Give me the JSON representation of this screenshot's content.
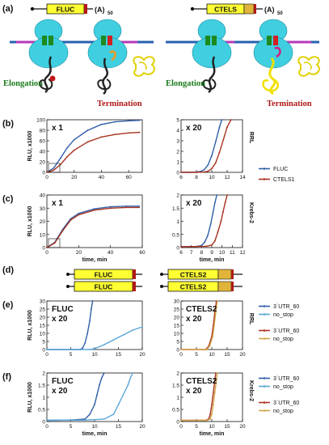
{
  "colors": {
    "blue": "#2f5fa8",
    "red": "#a8321e",
    "lightblue": "#5aa6d6",
    "gold": "#d2a64a",
    "black": "#111111",
    "ribosome": "#40cfe0",
    "green": "#1e8a1e",
    "termination": "#b01818",
    "elongation": "#1a7a1a",
    "yellow": "#ffff33"
  },
  "panel_a": {
    "label": "(a)",
    "construct_left": {
      "name": "FLUC",
      "polyA": "(A)",
      "polyA_sub": "50"
    },
    "construct_right": {
      "name": "CTELS",
      "polyA": "(A)",
      "polyA_sub": "50"
    },
    "elongation_left": "Elongation",
    "termination_left": "Termination",
    "elongation_right": "Elongation",
    "termination_right": "Termination"
  },
  "panel_d": {
    "label": "(d)",
    "constructs_left": [
      "FLUC",
      "FLUC"
    ],
    "constructs_right": [
      "CTELS2",
      "CTELS2"
    ]
  },
  "chart_data": [
    {
      "id": "b-left",
      "panel": "(b)",
      "type": "line",
      "annotation": "x 1",
      "ylabel": "RLU, x1000",
      "xlabel": "",
      "xlim": [
        0,
        70
      ],
      "ylim": [
        0,
        100
      ],
      "xticks": [
        0,
        20,
        40,
        60
      ],
      "yticks": [
        0,
        20,
        40,
        60,
        80,
        100
      ],
      "series": [
        {
          "color": "blue",
          "x": [
            0,
            5,
            10,
            15,
            20,
            30,
            40,
            50,
            60,
            68
          ],
          "y": [
            0,
            8,
            27,
            47,
            62,
            80,
            91,
            96,
            98,
            99
          ]
        },
        {
          "color": "red",
          "x": [
            0,
            5,
            10,
            15,
            20,
            30,
            40,
            50,
            60,
            68
          ],
          "y": [
            0,
            4,
            15,
            30,
            42,
            58,
            67,
            72,
            75,
            76
          ]
        }
      ]
    },
    {
      "id": "b-right",
      "panel": "",
      "type": "line",
      "annotation": "x 20",
      "side_label": "RRL",
      "xlabel": "",
      "xlim": [
        6,
        14
      ],
      "ylim": [
        0,
        5
      ],
      "xticks": [
        6,
        8,
        10,
        12,
        14
      ],
      "yticks": [
        0,
        1,
        2,
        3,
        4,
        5
      ],
      "series": [
        {
          "color": "blue",
          "x": [
            6,
            7,
            8,
            8.5,
            9,
            9.5,
            10,
            10.5,
            11,
            11.3
          ],
          "y": [
            0,
            0,
            0.03,
            0.08,
            0.25,
            0.7,
            1.6,
            2.9,
            4.3,
            5
          ]
        },
        {
          "color": "red",
          "x": [
            6,
            8,
            9,
            9.5,
            10,
            10.5,
            11,
            11.5,
            12,
            12.5
          ],
          "y": [
            0,
            0,
            0.03,
            0.1,
            0.35,
            0.9,
            1.9,
            3.1,
            4.3,
            5
          ]
        }
      ]
    },
    {
      "id": "c-left",
      "panel": "(c)",
      "type": "line",
      "annotation": "x 1",
      "ylabel": "RLU, x1000",
      "xlabel": "time, min",
      "xlim": [
        0,
        60
      ],
      "ylim": [
        0,
        40
      ],
      "xticks": [
        0,
        20,
        40,
        60
      ],
      "yticks": [
        0,
        10,
        20,
        30,
        40
      ],
      "series": [
        {
          "color": "blue",
          "x": [
            0,
            5,
            10,
            15,
            20,
            30,
            40,
            50,
            58
          ],
          "y": [
            0,
            4,
            14,
            22,
            26,
            29.5,
            31,
            31.5,
            31.5
          ]
        },
        {
          "color": "red",
          "x": [
            0,
            5,
            10,
            15,
            20,
            30,
            40,
            50,
            58
          ],
          "y": [
            0,
            3.5,
            13,
            21,
            25,
            28.5,
            30,
            30.5,
            30.5
          ]
        }
      ]
    },
    {
      "id": "c-right",
      "panel": "",
      "type": "line",
      "annotation": "x 20",
      "side_label": "Krebs-2",
      "xlabel": "time, min",
      "xlim": [
        6,
        12
      ],
      "ylim": [
        0,
        2
      ],
      "xticks": [
        6,
        7,
        8,
        9,
        10,
        11,
        12
      ],
      "yticks": [
        0,
        0.5,
        1,
        1.5,
        2
      ],
      "series": [
        {
          "color": "blue",
          "x": [
            6,
            7.5,
            8,
            8.3,
            8.6,
            8.9,
            9.1,
            9.3,
            9.5
          ],
          "y": [
            0.03,
            0.04,
            0.08,
            0.2,
            0.45,
            0.9,
            1.3,
            1.7,
            2
          ]
        },
        {
          "color": "red",
          "x": [
            6,
            8.5,
            9,
            9.3,
            9.6,
            9.9,
            10.1,
            10.3,
            10.5
          ],
          "y": [
            0.03,
            0.05,
            0.1,
            0.25,
            0.6,
            1.0,
            1.35,
            1.7,
            2
          ]
        }
      ]
    },
    {
      "id": "e-left",
      "panel": "(e)",
      "type": "line",
      "annotation": "FLUC",
      "annotation2": "x 20",
      "ylabel": "RLU, x1000",
      "xlabel": "",
      "xlim": [
        0,
        20
      ],
      "ylim": [
        0,
        30
      ],
      "xticks": [
        0,
        5,
        10,
        15,
        20
      ],
      "yticks": [
        0,
        5,
        10,
        15,
        20,
        25,
        30
      ],
      "series": [
        {
          "color": "blue",
          "x": [
            0,
            7,
            7.5,
            8,
            8.5,
            9,
            9.3,
            9.6
          ],
          "y": [
            0,
            0,
            1,
            4,
            10,
            18,
            25,
            30
          ]
        },
        {
          "color": "lightblue",
          "x": [
            0,
            9,
            10,
            12,
            14,
            16,
            18,
            20
          ],
          "y": [
            0,
            0,
            0.5,
            3,
            6,
            9,
            12,
            14
          ]
        }
      ]
    },
    {
      "id": "e-right",
      "panel": "",
      "type": "line",
      "annotation": "CTELS2",
      "annotation2": "x 20",
      "side_label": "RRL",
      "xlabel": "",
      "xlim": [
        0,
        20
      ],
      "ylim": [
        0,
        30
      ],
      "xticks": [
        0,
        5,
        10,
        15,
        20
      ],
      "yticks": [
        0,
        5,
        10,
        15,
        20,
        25,
        30
      ],
      "series": [
        {
          "color": "red",
          "x": [
            0,
            8,
            9,
            10,
            10.5,
            11,
            11.5
          ],
          "y": [
            0,
            0,
            2,
            8,
            15,
            23,
            30
          ]
        },
        {
          "color": "gold",
          "x": [
            0,
            8.3,
            9.3,
            10.3,
            10.8,
            11.3,
            11.8
          ],
          "y": [
            0,
            0,
            2,
            8,
            15,
            23,
            30
          ]
        }
      ]
    },
    {
      "id": "f-left",
      "panel": "(f)",
      "type": "line",
      "annotation": "FLUC",
      "annotation2": "x 20",
      "ylabel": "RLU, x1000",
      "xlabel": "time, min",
      "xlim": [
        0,
        20
      ],
      "ylim": [
        0,
        2
      ],
      "xticks": [
        0,
        5,
        10,
        15,
        20
      ],
      "yticks": [
        0,
        0.5,
        1,
        1.5,
        2
      ],
      "series": [
        {
          "color": "blue",
          "x": [
            0,
            5,
            8,
            9,
            10,
            10.5,
            11,
            11.5,
            12
          ],
          "y": [
            0.05,
            0.06,
            0.1,
            0.3,
            0.7,
            1.1,
            1.5,
            1.8,
            2
          ]
        },
        {
          "color": "lightblue",
          "x": [
            0,
            8,
            12,
            14,
            15,
            16,
            17,
            17.5,
            18
          ],
          "y": [
            0.05,
            0.06,
            0.1,
            0.3,
            0.7,
            1.1,
            1.5,
            1.8,
            2
          ]
        }
      ]
    },
    {
      "id": "f-right",
      "panel": "",
      "type": "line",
      "annotation": "CTELS2",
      "annotation2": "x 20",
      "side_label": "Krebs-2",
      "xlabel": "time, min",
      "xlim": [
        0,
        20
      ],
      "ylim": [
        0,
        2
      ],
      "xticks": [
        0,
        5,
        10,
        15,
        20
      ],
      "yticks": [
        0,
        0.5,
        1,
        1.5,
        2
      ],
      "series": [
        {
          "color": "red",
          "x": [
            0,
            8,
            9,
            9.5,
            10,
            10.5,
            11,
            11.3
          ],
          "y": [
            0.05,
            0.05,
            0.1,
            0.3,
            0.7,
            1.2,
            1.7,
            2
          ]
        },
        {
          "color": "gold",
          "x": [
            0,
            8.5,
            9.5,
            10,
            10.5,
            11,
            11.5,
            11.8
          ],
          "y": [
            0.05,
            0.05,
            0.1,
            0.3,
            0.7,
            1.2,
            1.7,
            2
          ]
        }
      ]
    }
  ],
  "legend_bc": [
    {
      "label": "FLUC",
      "color": "blue"
    },
    {
      "label": "CTELS1",
      "color": "red"
    }
  ],
  "legend_ef": [
    {
      "label": "3´UTR_60",
      "color": "blue"
    },
    {
      "label": "no_stop",
      "color": "lightblue"
    },
    {
      "label": "3´UTR_60",
      "color": "red"
    },
    {
      "label": "no_stop",
      "color": "gold"
    }
  ]
}
